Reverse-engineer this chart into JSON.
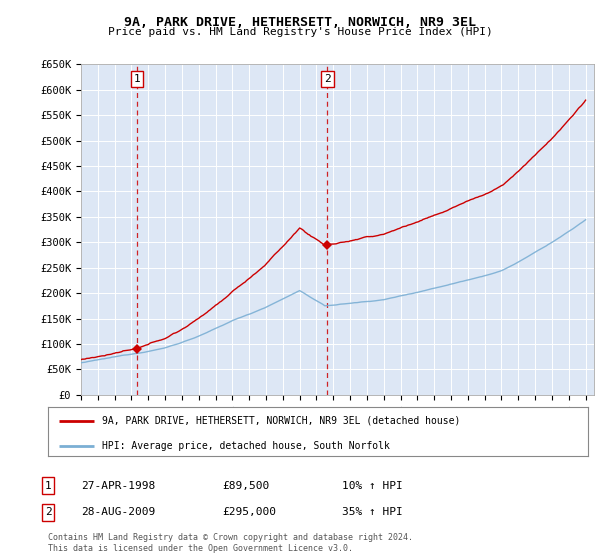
{
  "title": "9A, PARK DRIVE, HETHERSETT, NORWICH, NR9 3EL",
  "subtitle": "Price paid vs. HM Land Registry's House Price Index (HPI)",
  "legend_line1": "9A, PARK DRIVE, HETHERSETT, NORWICH, NR9 3EL (detached house)",
  "legend_line2": "HPI: Average price, detached house, South Norfolk",
  "footnote": "Contains HM Land Registry data © Crown copyright and database right 2024.\nThis data is licensed under the Open Government Licence v3.0.",
  "sale1_label": "1",
  "sale1_date": "27-APR-1998",
  "sale1_price": "£89,500",
  "sale1_hpi": "10% ↑ HPI",
  "sale2_label": "2",
  "sale2_date": "28-AUG-2009",
  "sale2_price": "£295,000",
  "sale2_hpi": "35% ↑ HPI",
  "sale1_year": 1998.32,
  "sale1_value": 89500,
  "sale2_year": 2009.65,
  "sale2_value": 295000,
  "ylim_min": 0,
  "ylim_max": 650000,
  "xlim_min": 1995,
  "xlim_max": 2025.5,
  "plot_bg": "#dde7f5",
  "grid_color": "#ffffff",
  "hpi_color": "#7bafd4",
  "price_color": "#cc0000",
  "sale_line_color": "#cc0000",
  "yticks": [
    0,
    50000,
    100000,
    150000,
    200000,
    250000,
    300000,
    350000,
    400000,
    450000,
    500000,
    550000,
    600000,
    650000
  ],
  "ytick_labels": [
    "£0",
    "£50K",
    "£100K",
    "£150K",
    "£200K",
    "£250K",
    "£300K",
    "£350K",
    "£400K",
    "£450K",
    "£500K",
    "£550K",
    "£600K",
    "£650K"
  ]
}
